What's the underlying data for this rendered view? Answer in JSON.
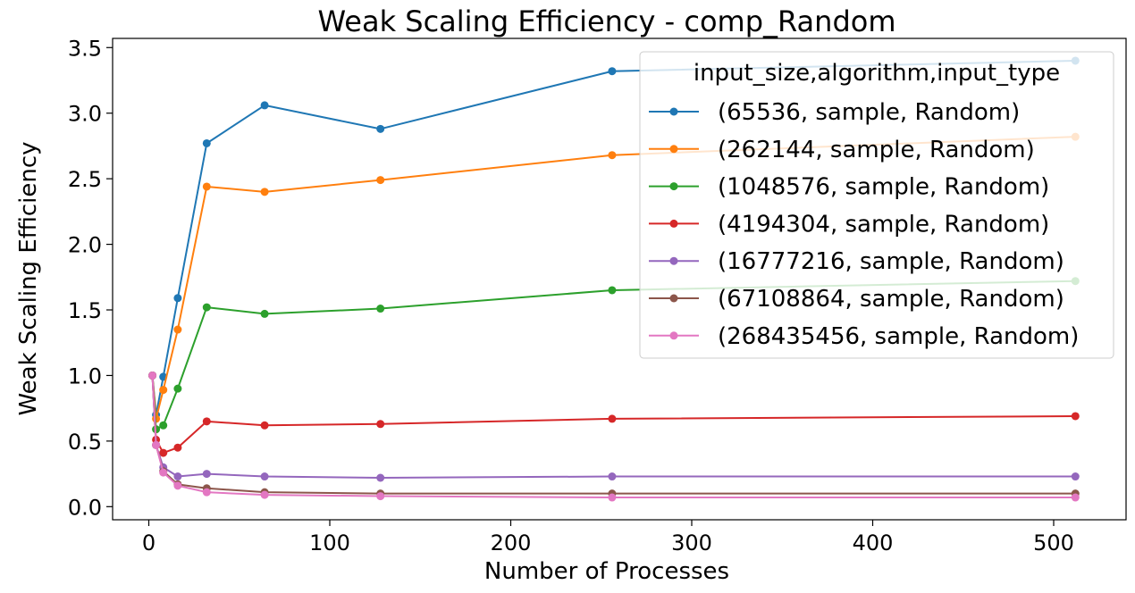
{
  "chart_data": {
    "type": "line",
    "title": "Weak Scaling Efficiency - comp_Random",
    "xlabel": "Number of Processes",
    "ylabel": "Weak Scaling Efficiency",
    "xlim": [
      -20,
      540
    ],
    "ylim": [
      -0.1,
      3.57
    ],
    "xticks": [
      0,
      100,
      200,
      300,
      400,
      500
    ],
    "yticks": [
      0.0,
      0.5,
      1.0,
      1.5,
      2.0,
      2.5,
      3.0,
      3.5
    ],
    "xtick_labels": [
      "0",
      "100",
      "200",
      "300",
      "400",
      "500"
    ],
    "ytick_labels": [
      "0.0",
      "0.5",
      "1.0",
      "1.5",
      "2.0",
      "2.5",
      "3.0",
      "3.5"
    ],
    "grid": false,
    "legend_title": "input_size,algorithm,input_type",
    "legend_position": "top-right",
    "x": [
      2,
      4,
      8,
      16,
      32,
      64,
      128,
      256,
      512
    ],
    "series": [
      {
        "name": "(65536, sample, Random)",
        "color": "#1f77b4",
        "values": [
          1.0,
          0.7,
          0.99,
          1.59,
          2.77,
          3.06,
          2.88,
          3.32,
          3.4
        ]
      },
      {
        "name": "(262144, sample, Random)",
        "color": "#ff7f0e",
        "values": [
          1.0,
          0.67,
          0.89,
          1.35,
          2.44,
          2.4,
          2.49,
          2.68,
          2.82
        ]
      },
      {
        "name": "(1048576, sample, Random)",
        "color": "#2ca02c",
        "values": [
          1.0,
          0.59,
          0.62,
          0.9,
          1.52,
          1.47,
          1.51,
          1.65,
          1.72
        ]
      },
      {
        "name": "(4194304, sample, Random)",
        "color": "#d62728",
        "values": [
          1.0,
          0.51,
          0.41,
          0.45,
          0.65,
          0.62,
          0.63,
          0.67,
          0.69
        ]
      },
      {
        "name": "(16777216, sample, Random)",
        "color": "#9467bd",
        "values": [
          1.0,
          0.47,
          0.3,
          0.23,
          0.25,
          0.23,
          0.22,
          0.23,
          0.23
        ]
      },
      {
        "name": "(67108864, sample, Random)",
        "color": "#8c564b",
        "values": [
          1.0,
          0.47,
          0.27,
          0.17,
          0.14,
          0.11,
          0.1,
          0.1,
          0.1
        ]
      },
      {
        "name": "(268435456, sample, Random)",
        "color": "#e377c2",
        "values": [
          1.0,
          0.47,
          0.26,
          0.16,
          0.11,
          0.09,
          0.08,
          0.07,
          0.07
        ]
      }
    ]
  }
}
